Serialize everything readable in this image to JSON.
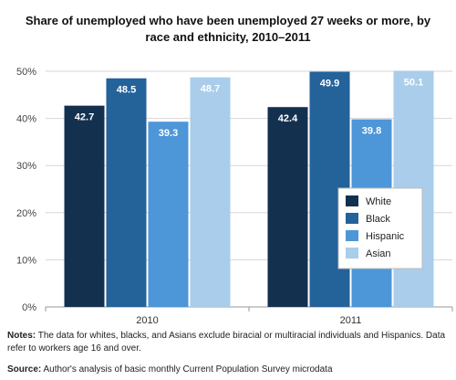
{
  "chart_data": {
    "type": "bar",
    "title_line1": "Share of unemployed who have been unemployed 27 weeks or more, by",
    "title_line2": "race and ethnicity, 2010–2011",
    "categories": [
      "2010",
      "2011"
    ],
    "series": [
      {
        "name": "White",
        "color": "#14304f",
        "values": [
          42.7,
          42.4
        ]
      },
      {
        "name": "Black",
        "color": "#24629a",
        "values": [
          48.5,
          49.9
        ]
      },
      {
        "name": "Hispanic",
        "color": "#4d96d8",
        "values": [
          39.3,
          39.8
        ]
      },
      {
        "name": "Asian",
        "color": "#a9cdea",
        "values": [
          48.7,
          50.1
        ]
      }
    ],
    "value_labels": [
      [
        "42.7",
        "42.4"
      ],
      [
        "48.5",
        "49.9"
      ],
      [
        "39.3",
        "39.8"
      ],
      [
        "48.7",
        "50.1"
      ]
    ],
    "yticks": [
      0,
      10,
      20,
      30,
      40,
      50
    ],
    "ytick_labels": [
      "0%",
      "10%",
      "20%",
      "30%",
      "40%",
      "50%"
    ],
    "ylim": [
      0,
      50
    ],
    "grid": true,
    "legend_position": "right"
  },
  "notes": {
    "label": "Notes:",
    "text": " The data for whites, blacks, and Asians exclude biracial or multiracial individuals and Hispanics. Data refer to workers age 16 and over."
  },
  "source": {
    "label": "Source:",
    "text": " Author's analysis of basic monthly Current Population Survey microdata"
  }
}
